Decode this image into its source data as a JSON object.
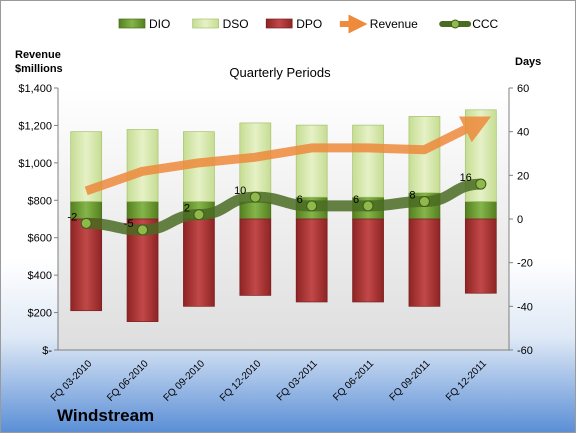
{
  "chart_data": {
    "type": "bar",
    "title": "Quarterly Periods",
    "company": "Windstream",
    "ylabel_left_line1": "Revenue",
    "ylabel_left_line2": "$millions",
    "ylabel_right": "Days",
    "categories": [
      "FQ 03-2010",
      "FQ 06-2010",
      "FQ 09-2010",
      "FQ 12-2010",
      "FQ 03-2011",
      "FQ 06-2011",
      "FQ 09-2011",
      "FQ 12-2011"
    ],
    "left_axis": {
      "ylim": [
        0,
        1400
      ],
      "ticks": [
        "$-",
        "$200",
        "$400",
        "$600",
        "$800",
        "$1,000",
        "$1,200",
        "$1,400"
      ]
    },
    "right_axis": {
      "ylim": [
        -60,
        60
      ],
      "ticks": [
        "-60",
        "-40",
        "-20",
        "0",
        "20",
        "40",
        "60"
      ]
    },
    "series": [
      {
        "name": "DIO",
        "color": "#6a9a2e",
        "low": [
          0,
          0,
          0,
          0,
          0,
          0,
          0,
          0
        ],
        "high": [
          8,
          8,
          8,
          8,
          10,
          10,
          12,
          8
        ]
      },
      {
        "name": "DSO",
        "color": "#d4e6a8",
        "low": [
          8,
          8,
          8,
          8,
          10,
          10,
          12,
          8
        ],
        "high": [
          40,
          41,
          40,
          44,
          43,
          43,
          47,
          50
        ]
      },
      {
        "name": "DPO",
        "color": "#a83232",
        "low": [
          -42,
          -47,
          -40,
          -35,
          -38,
          -38,
          -40,
          -34
        ],
        "high": [
          0,
          0,
          0,
          0,
          0,
          0,
          0,
          0
        ]
      },
      {
        "name": "Revenue",
        "color": "#ee8a3c",
        "values": [
          850,
          955,
          1000,
          1030,
          1080,
          1080,
          1070,
          1220
        ]
      },
      {
        "name": "CCC",
        "color": "#4a6b22",
        "values": [
          -2,
          -5,
          2,
          10,
          6,
          6,
          8,
          16
        ],
        "labels": [
          "-2",
          "-5",
          "2",
          "10",
          "6",
          "6",
          "8",
          "16"
        ]
      }
    ],
    "grid": false,
    "legend_position": "top"
  }
}
